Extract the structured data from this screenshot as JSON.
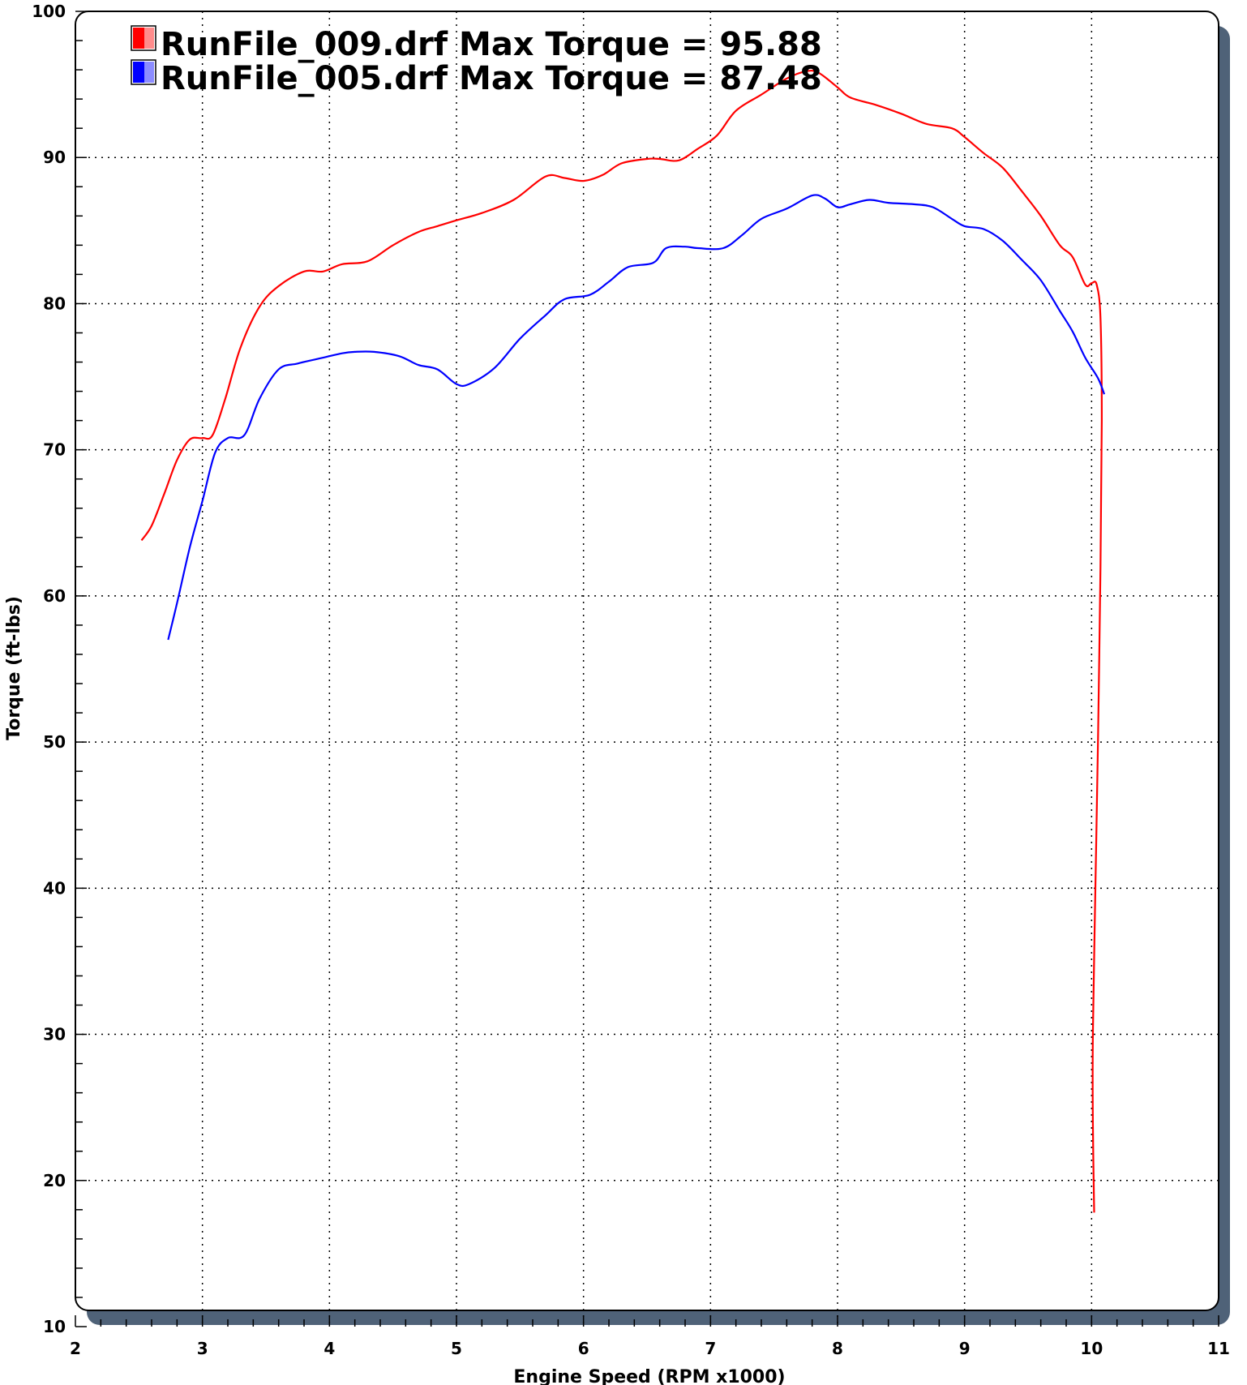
{
  "chart_data": {
    "type": "line",
    "title": "",
    "xlabel": "Engine Speed (RPM x1000)",
    "ylabel": "Torque (ft-lbs)",
    "xlim": [
      2,
      11
    ],
    "ylim": [
      10,
      100
    ],
    "x_ticks": [
      "2",
      "3",
      "4",
      "5",
      "6",
      "7",
      "8",
      "9",
      "10",
      "11"
    ],
    "y_ticks": [
      "10",
      "20",
      "30",
      "40",
      "50",
      "60",
      "70",
      "80",
      "90",
      "100"
    ],
    "grid": true,
    "legend_position": "top-left",
    "colors": {
      "red": "#ff0000",
      "blue": "#0000ff",
      "frame_shadow": "#4f6278"
    },
    "legend": [
      {
        "label": "RunFile_009.drf Max Torque = 95.88",
        "color": "#ff0000"
      },
      {
        "label": "RunFile_005.drf Max Torque = 87.48",
        "color": "#0000ff"
      }
    ],
    "series": [
      {
        "color": "#ff0000",
        "points": [
          [
            2.52,
            63.8
          ],
          [
            2.6,
            64.8
          ],
          [
            2.7,
            67.0
          ],
          [
            2.8,
            69.3
          ],
          [
            2.9,
            70.7
          ],
          [
            3.0,
            70.8
          ],
          [
            3.08,
            71.0
          ],
          [
            3.18,
            73.5
          ],
          [
            3.3,
            77.0
          ],
          [
            3.45,
            79.8
          ],
          [
            3.6,
            81.2
          ],
          [
            3.8,
            82.2
          ],
          [
            3.95,
            82.2
          ],
          [
            4.1,
            82.7
          ],
          [
            4.3,
            82.9
          ],
          [
            4.5,
            84.0
          ],
          [
            4.7,
            84.9
          ],
          [
            4.85,
            85.3
          ],
          [
            5.0,
            85.7
          ],
          [
            5.2,
            86.2
          ],
          [
            5.45,
            87.1
          ],
          [
            5.7,
            88.7
          ],
          [
            5.85,
            88.6
          ],
          [
            6.0,
            88.4
          ],
          [
            6.15,
            88.8
          ],
          [
            6.3,
            89.6
          ],
          [
            6.5,
            89.9
          ],
          [
            6.6,
            89.9
          ],
          [
            6.75,
            89.8
          ],
          [
            6.9,
            90.6
          ],
          [
            7.05,
            91.5
          ],
          [
            7.2,
            93.2
          ],
          [
            7.4,
            94.3
          ],
          [
            7.6,
            95.4
          ],
          [
            7.75,
            95.9
          ],
          [
            7.85,
            95.8
          ],
          [
            8.0,
            94.8
          ],
          [
            8.1,
            94.1
          ],
          [
            8.3,
            93.6
          ],
          [
            8.5,
            93.0
          ],
          [
            8.7,
            92.3
          ],
          [
            8.9,
            92.0
          ],
          [
            9.0,
            91.4
          ],
          [
            9.15,
            90.3
          ],
          [
            9.3,
            89.3
          ],
          [
            9.45,
            87.7
          ],
          [
            9.6,
            86.0
          ],
          [
            9.75,
            84.0
          ],
          [
            9.85,
            83.2
          ],
          [
            9.95,
            81.3
          ],
          [
            10.0,
            81.4
          ],
          [
            10.04,
            81.3
          ],
          [
            10.07,
            79.0
          ],
          [
            10.08,
            72.0
          ],
          [
            10.07,
            62.0
          ],
          [
            10.05,
            50.0
          ],
          [
            10.03,
            40.0
          ],
          [
            10.01,
            30.0
          ],
          [
            10.01,
            24.0
          ],
          [
            10.02,
            17.8
          ]
        ]
      },
      {
        "color": "#0000ff",
        "points": [
          [
            2.73,
            57.0
          ],
          [
            2.8,
            59.5
          ],
          [
            2.9,
            63.3
          ],
          [
            3.0,
            66.5
          ],
          [
            3.1,
            69.8
          ],
          [
            3.2,
            70.8
          ],
          [
            3.33,
            71.0
          ],
          [
            3.45,
            73.5
          ],
          [
            3.6,
            75.5
          ],
          [
            3.75,
            75.9
          ],
          [
            3.95,
            76.3
          ],
          [
            4.1,
            76.6
          ],
          [
            4.2,
            76.7
          ],
          [
            4.35,
            76.7
          ],
          [
            4.55,
            76.4
          ],
          [
            4.7,
            75.8
          ],
          [
            4.85,
            75.5
          ],
          [
            5.0,
            74.5
          ],
          [
            5.1,
            74.5
          ],
          [
            5.3,
            75.6
          ],
          [
            5.5,
            77.6
          ],
          [
            5.7,
            79.2
          ],
          [
            5.85,
            80.3
          ],
          [
            6.05,
            80.6
          ],
          [
            6.2,
            81.5
          ],
          [
            6.35,
            82.5
          ],
          [
            6.55,
            82.8
          ],
          [
            6.65,
            83.8
          ],
          [
            6.8,
            83.9
          ],
          [
            6.9,
            83.8
          ],
          [
            7.1,
            83.8
          ],
          [
            7.25,
            84.7
          ],
          [
            7.4,
            85.8
          ],
          [
            7.6,
            86.5
          ],
          [
            7.8,
            87.4
          ],
          [
            7.9,
            87.2
          ],
          [
            8.0,
            86.6
          ],
          [
            8.1,
            86.8
          ],
          [
            8.25,
            87.1
          ],
          [
            8.4,
            86.9
          ],
          [
            8.6,
            86.8
          ],
          [
            8.75,
            86.6
          ],
          [
            8.9,
            85.8
          ],
          [
            9.0,
            85.3
          ],
          [
            9.15,
            85.1
          ],
          [
            9.3,
            84.3
          ],
          [
            9.45,
            83.0
          ],
          [
            9.6,
            81.6
          ],
          [
            9.75,
            79.5
          ],
          [
            9.85,
            78.1
          ],
          [
            9.95,
            76.3
          ],
          [
            10.05,
            74.9
          ],
          [
            10.1,
            73.8
          ]
        ]
      }
    ]
  }
}
